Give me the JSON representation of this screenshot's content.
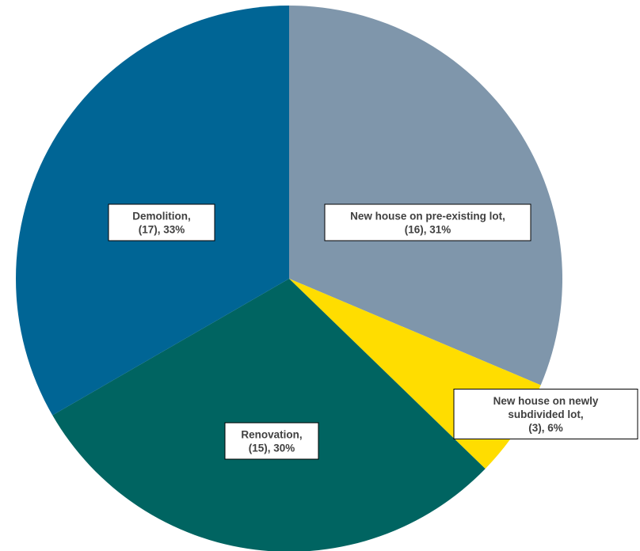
{
  "chart_data": {
    "type": "pie",
    "slices": [
      {
        "name": "New house on pre-existing lot",
        "count": 16,
        "percent": 31,
        "color": "#7f96ab",
        "label_lines": [
          "New house on pre-existing lot,",
          "(16), 31%"
        ]
      },
      {
        "name": "New house on newly subdivided lot",
        "count": 3,
        "percent": 6,
        "color": "#ffdd00",
        "label_lines": [
          "New house on newly",
          "subdivided lot,",
          "(3), 6%"
        ]
      },
      {
        "name": "Renovation",
        "count": 15,
        "percent": 30,
        "color": "#006461",
        "label_lines": [
          "Renovation,",
          "(15), 30%"
        ]
      },
      {
        "name": "Demolition",
        "count": 17,
        "percent": 33,
        "color": "#006595",
        "label_lines": [
          "Demolition,",
          "(17), 33%"
        ]
      }
    ]
  }
}
